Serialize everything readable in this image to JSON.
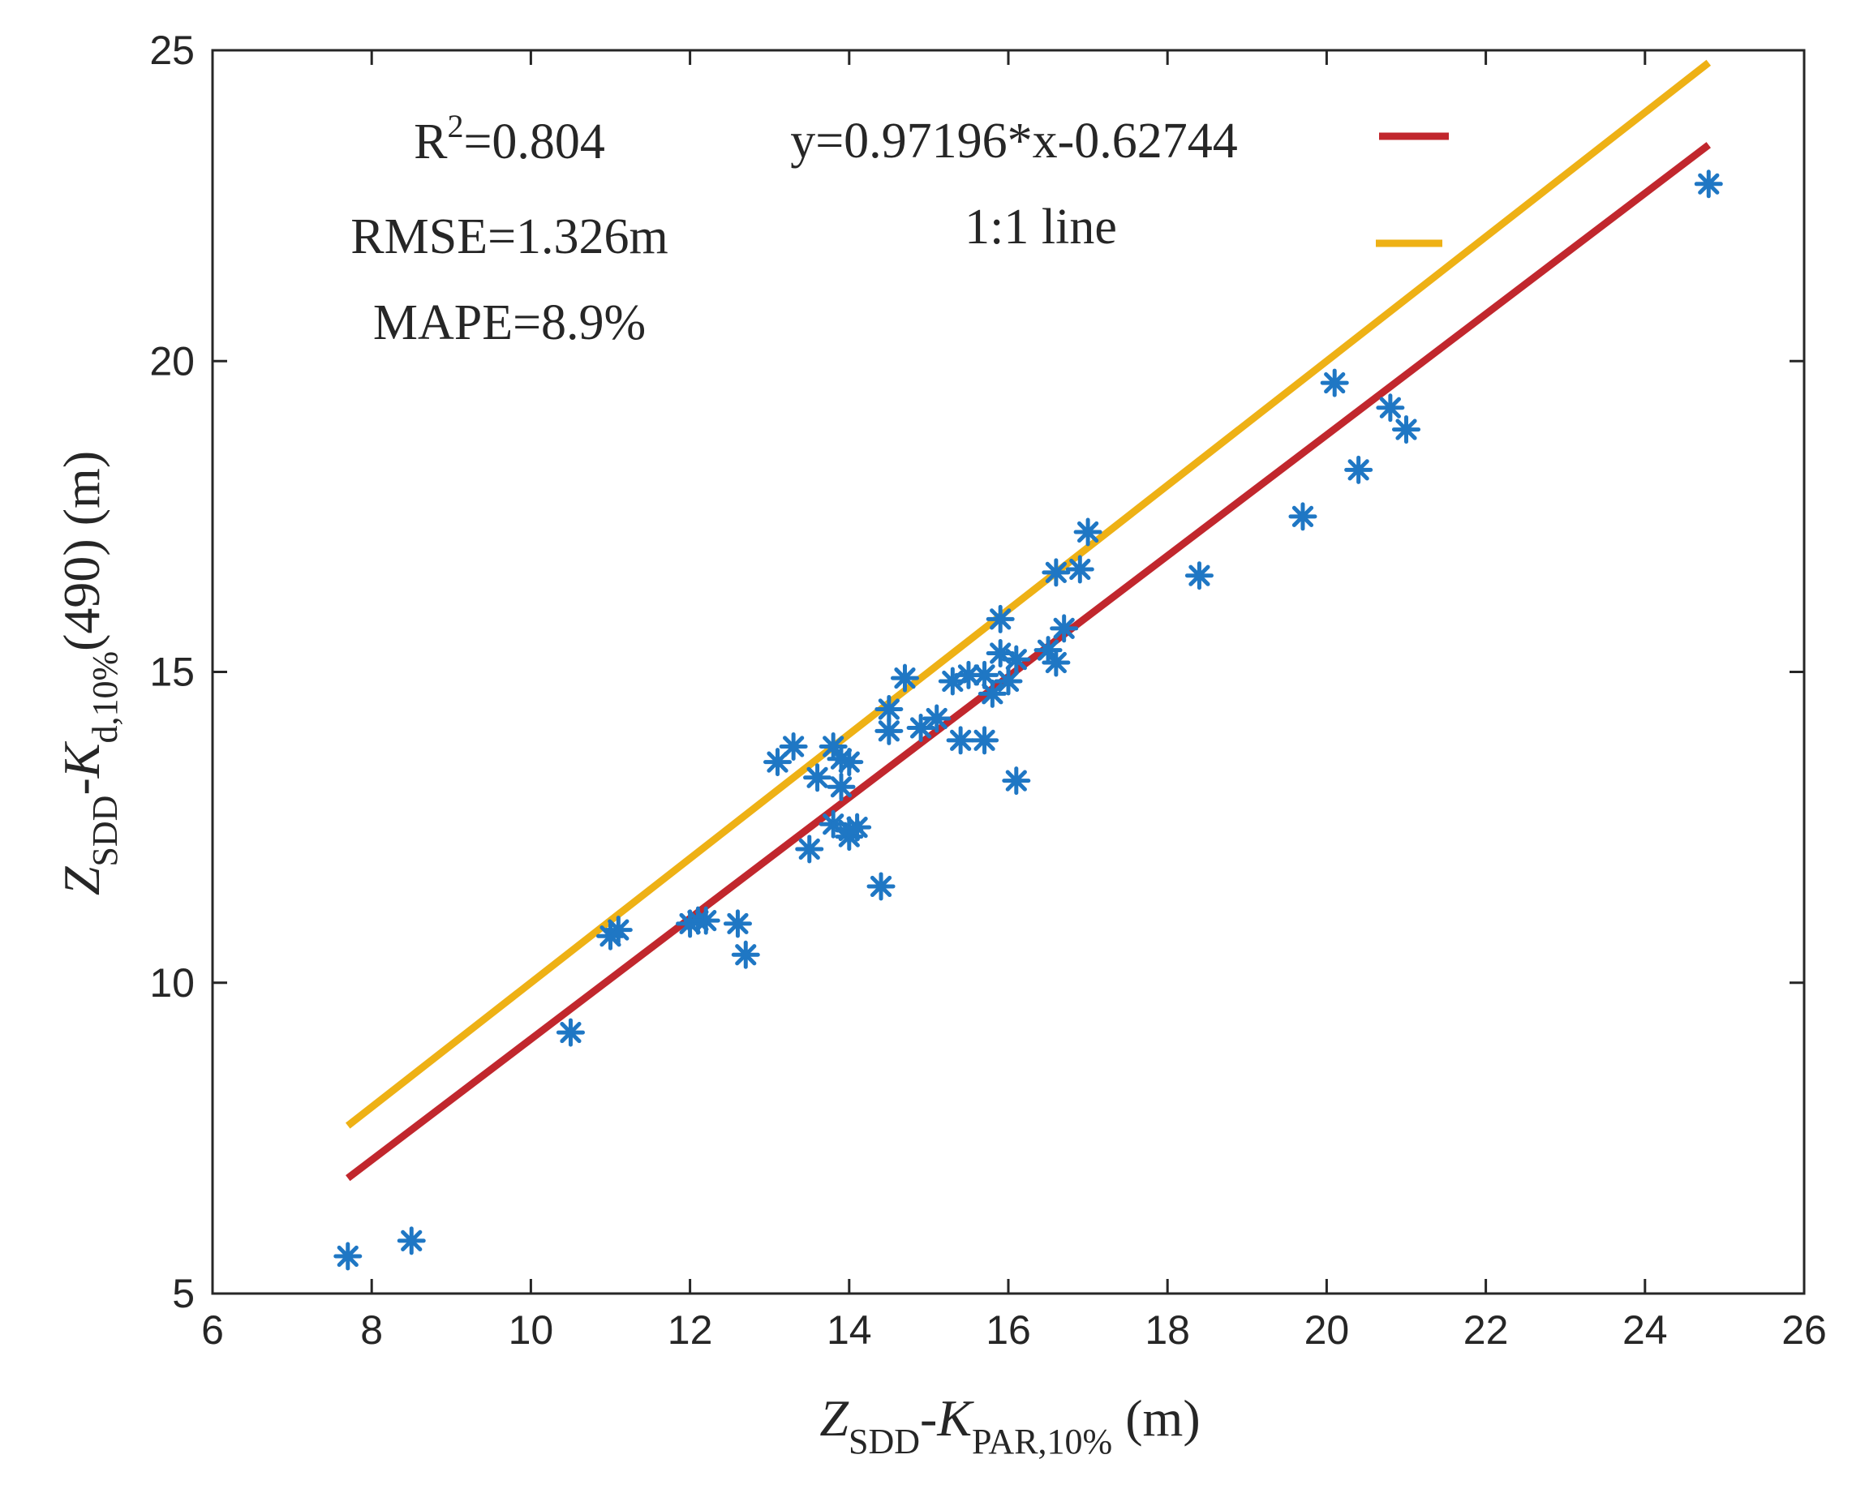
{
  "chart_data": {
    "type": "scatter",
    "title": "",
    "xlabel": "Z_SDD-K_PAR,10% (m)",
    "ylabel": "Z_SDD-K_d,10%(490) (m)",
    "xlabel_parts": {
      "main": "Z",
      "sub1": "SDD",
      "mid": "-K",
      "sub2": "PAR,10%",
      "unit": " (m)"
    },
    "ylabel_parts": {
      "main": "Z",
      "sub1": "SDD",
      "mid": "-K",
      "sub2": "d,10%",
      "unit": "(490) (m)"
    },
    "xlim": [
      6,
      26
    ],
    "ylim": [
      5,
      25
    ],
    "xticks": [
      6,
      8,
      10,
      12,
      14,
      16,
      18,
      20,
      22,
      24,
      26
    ],
    "yticks": [
      5,
      10,
      15,
      20,
      25
    ],
    "xtick_labels": [
      "6",
      "8",
      "10",
      "12",
      "14",
      "16",
      "18",
      "20",
      "22",
      "24",
      "26"
    ],
    "ytick_labels": [
      "5",
      "10",
      "15",
      "20",
      "25"
    ],
    "grid": false,
    "stats": {
      "r2_prefix": "R",
      "r2_sup": "2",
      "r2_value": "=0.804",
      "rmse": "RMSE=1.326m",
      "mape": "MAPE=8.9%"
    },
    "legend": {
      "position": "top-right",
      "entries": [
        {
          "label": "y=0.97196*x-0.62744",
          "color": "#c1272d"
        },
        {
          "label": "1:1 line",
          "color": "#eeb115"
        }
      ]
    },
    "lines": [
      {
        "name": "fit",
        "slope": 0.97196,
        "intercept": -0.62744,
        "x_range": [
          7.7,
          24.8
        ],
        "color": "#c1272d"
      },
      {
        "name": "1:1",
        "slope": 1,
        "intercept": 0,
        "x_range": [
          7.7,
          24.8
        ],
        "color": "#eeb115"
      }
    ],
    "marker_color": "#1f77c4",
    "series": [
      {
        "name": "samples",
        "marker": "asterisk",
        "points": [
          [
            7.7,
            5.6
          ],
          [
            8.5,
            5.85
          ],
          [
            10.5,
            9.2
          ],
          [
            11.0,
            10.75
          ],
          [
            11.1,
            10.85
          ],
          [
            12.0,
            10.95
          ],
          [
            12.1,
            11.0
          ],
          [
            12.2,
            11.0
          ],
          [
            12.6,
            10.95
          ],
          [
            12.7,
            10.45
          ],
          [
            13.1,
            13.55
          ],
          [
            13.3,
            13.8
          ],
          [
            13.5,
            12.15
          ],
          [
            13.6,
            13.3
          ],
          [
            13.8,
            13.8
          ],
          [
            13.8,
            12.55
          ],
          [
            13.9,
            13.15
          ],
          [
            13.9,
            13.6
          ],
          [
            14.0,
            12.45
          ],
          [
            14.0,
            13.55
          ],
          [
            14.0,
            12.35
          ],
          [
            14.1,
            12.5
          ],
          [
            14.4,
            11.55
          ],
          [
            14.5,
            14.4
          ],
          [
            14.5,
            14.05
          ],
          [
            14.7,
            14.9
          ],
          [
            14.9,
            14.1
          ],
          [
            15.1,
            14.25
          ],
          [
            15.3,
            14.85
          ],
          [
            15.4,
            13.9
          ],
          [
            15.5,
            14.95
          ],
          [
            15.7,
            13.9
          ],
          [
            15.7,
            14.95
          ],
          [
            15.8,
            14.65
          ],
          [
            15.9,
            15.3
          ],
          [
            15.9,
            15.85
          ],
          [
            16.0,
            14.85
          ],
          [
            16.1,
            15.2
          ],
          [
            16.1,
            13.25
          ],
          [
            16.5,
            15.35
          ],
          [
            16.6,
            15.15
          ],
          [
            16.6,
            16.6
          ],
          [
            16.7,
            15.7
          ],
          [
            16.9,
            16.65
          ],
          [
            17.0,
            17.25
          ],
          [
            18.4,
            16.55
          ],
          [
            19.7,
            17.5
          ],
          [
            20.1,
            19.65
          ],
          [
            20.4,
            18.25
          ],
          [
            20.8,
            19.25
          ],
          [
            21.0,
            18.9
          ],
          [
            24.8,
            22.85
          ]
        ]
      }
    ]
  }
}
